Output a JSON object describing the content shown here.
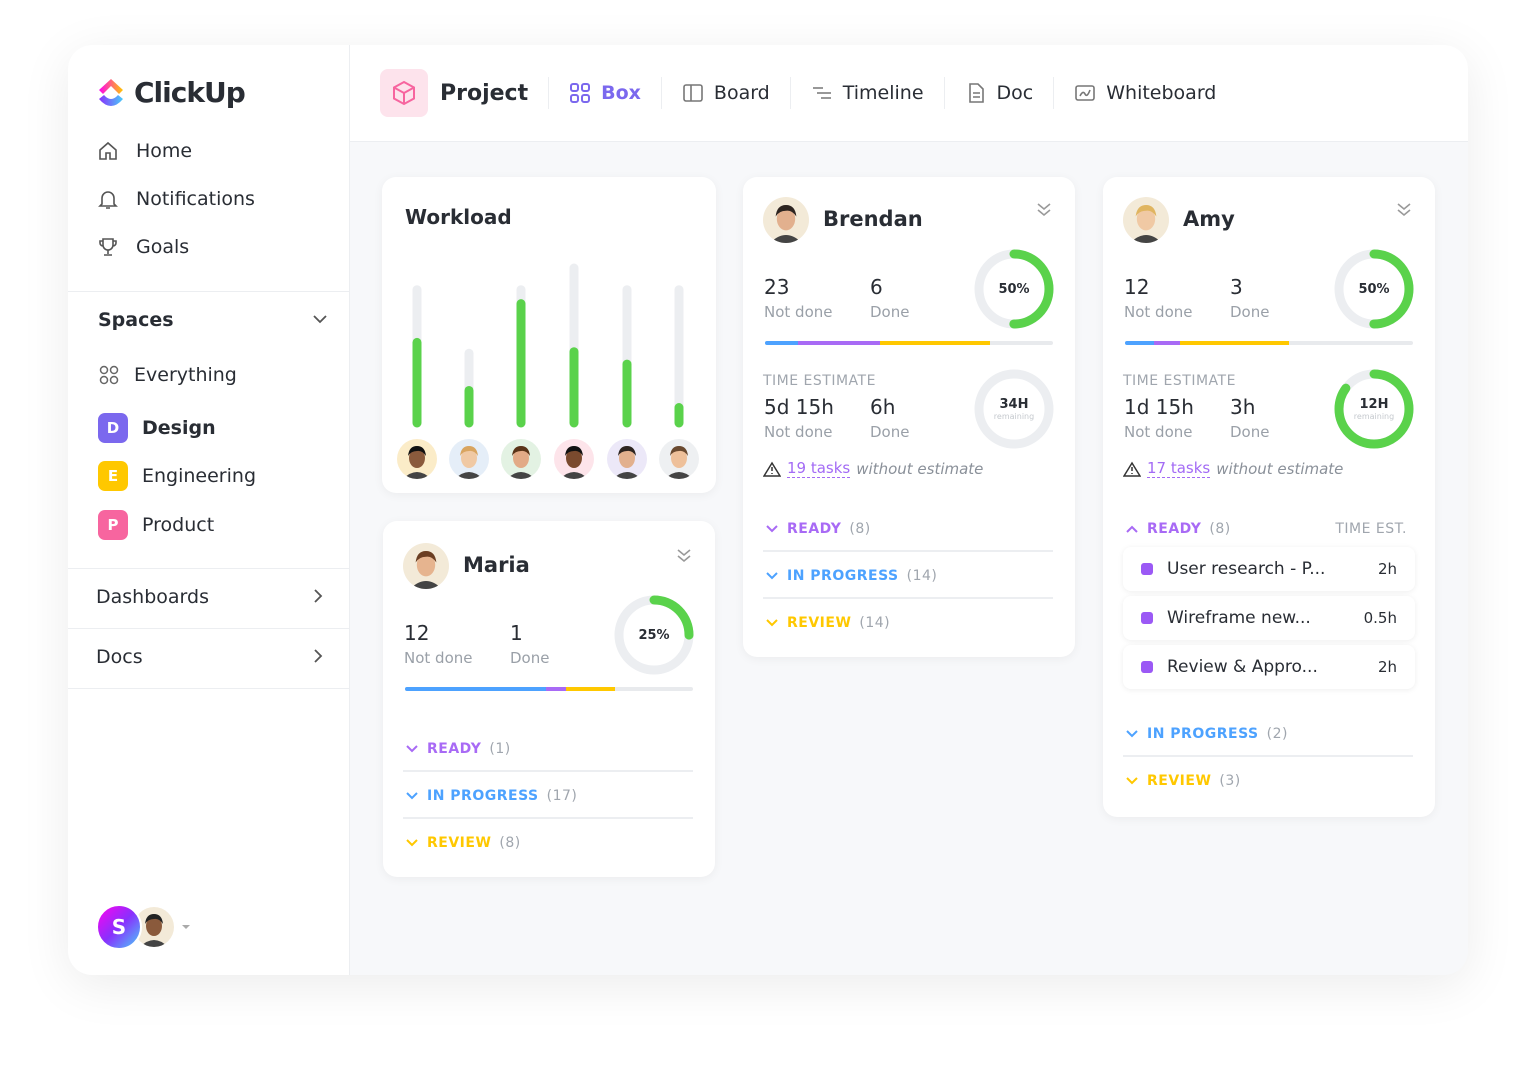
{
  "app": {
    "brand": "ClickUp"
  },
  "sidebar": {
    "nav": [
      {
        "label": "Home",
        "icon": "home-icon"
      },
      {
        "label": "Notifications",
        "icon": "bell-icon"
      },
      {
        "label": "Goals",
        "icon": "trophy-icon"
      }
    ],
    "spaces_title": "Spaces",
    "spaces": [
      {
        "label": "Everything"
      },
      {
        "label": "Design",
        "letter": "D",
        "color": "#7b68ee"
      },
      {
        "label": "Engineering",
        "letter": "E",
        "color": "#ffc800"
      },
      {
        "label": "Product",
        "letter": "P",
        "color": "#f7659f"
      }
    ],
    "sections": [
      {
        "label": "Dashboards"
      },
      {
        "label": "Docs"
      }
    ],
    "user_initial": "S"
  },
  "header": {
    "project": "Project",
    "tabs": [
      {
        "label": "Box",
        "active": true
      },
      {
        "label": "Board"
      },
      {
        "label": "Timeline"
      },
      {
        "label": "Doc"
      },
      {
        "label": "Whiteboard"
      }
    ]
  },
  "colors": {
    "accent": "#7b68ee",
    "green": "#5ad24b",
    "blue": "#4da2ff",
    "purple": "#a86af5",
    "yellow": "#ffc800"
  },
  "workload": {
    "title": "Workload",
    "chart_data": {
      "type": "bar",
      "capacity": [
        0.86,
        0.45,
        0.86,
        1,
        0.86,
        0.86
      ],
      "load": [
        0.52,
        0.21,
        0.77,
        0.46,
        0.38,
        0.1
      ]
    }
  },
  "people": {
    "maria": {
      "name": "Maria",
      "not_done": "12",
      "done": "1",
      "not_done_label": "Not done",
      "done_label": "Done",
      "percent": "25%",
      "pct": 0.25,
      "progress": {
        "blue": 0.49,
        "purple": 0.07,
        "yellow": 0.17
      },
      "statuses": [
        {
          "label": "READY",
          "count": "(1)"
        },
        {
          "label": "IN PROGRESS",
          "count": "(17)"
        },
        {
          "label": "REVIEW",
          "count": "(8)"
        }
      ]
    },
    "brendan": {
      "name": "Brendan",
      "not_done": "23",
      "done": "6",
      "not_done_label": "Not done",
      "done_label": "Done",
      "percent": "50%",
      "pct": 0.5,
      "progress": {
        "blue": 0.115,
        "purple": 0.285,
        "yellow": 0.38
      },
      "time_title": "TIME ESTIMATE",
      "time_not_done": "5d 15h",
      "time_done": "6h",
      "remaining": "34H",
      "remaining_label": "remaining",
      "remaining_pct": 0,
      "warn_link": "19 tasks",
      "warn_text": "without estimate",
      "statuses": [
        {
          "label": "READY",
          "count": "(8)"
        },
        {
          "label": "IN PROGRESS",
          "count": "(14)"
        },
        {
          "label": "REVIEW",
          "count": "(14)"
        }
      ]
    },
    "amy": {
      "name": "Amy",
      "not_done": "12",
      "done": "3",
      "not_done_label": "Not done",
      "done_label": "Done",
      "percent": "50%",
      "pct": 0.5,
      "progress": {
        "blue": 0.1,
        "purple": 0.09,
        "yellow": 0.38
      },
      "time_title": "TIME ESTIMATE",
      "time_not_done": "1d 15h",
      "time_done": "3h",
      "remaining": "12H",
      "remaining_label": "remaining",
      "remaining_pct": 0.85,
      "warn_link": "17 tasks",
      "warn_text": "without estimate",
      "time_est_label": "TIME EST.",
      "tasks": [
        {
          "name": "User research - P...",
          "time": "2h"
        },
        {
          "name": "Wireframe new...",
          "time": "0.5h"
        },
        {
          "name": "Review & Appro...",
          "time": "2h"
        }
      ],
      "statuses": [
        {
          "label": "READY",
          "count": "(8)"
        },
        {
          "label": "IN PROGRESS",
          "count": "(2)"
        },
        {
          "label": "REVIEW",
          "count": "(3)"
        }
      ]
    }
  }
}
